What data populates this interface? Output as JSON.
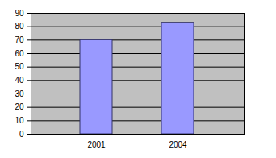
{
  "chart_data": {
    "type": "bar",
    "categories": [
      "2001",
      "2004"
    ],
    "values": [
      70,
      83
    ],
    "color": "#9999ff",
    "ylim": [
      0,
      90
    ],
    "yticks": [
      0,
      10,
      20,
      30,
      40,
      50,
      60,
      70,
      80,
      90
    ],
    "grid": true
  }
}
